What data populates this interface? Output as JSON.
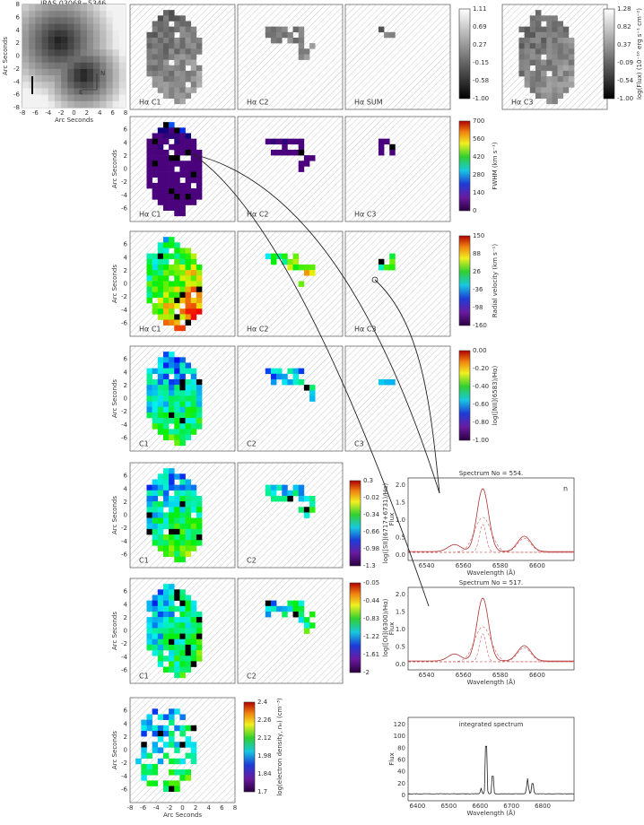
{
  "header": {
    "title": "IRAS 03068−5346"
  },
  "axes": {
    "x_label": "Arc Seconds",
    "y_label": "Arc Seconds",
    "ticks": [
      "-8",
      "-6",
      "-4",
      "-2",
      "0",
      "2",
      "4",
      "6",
      "8"
    ],
    "compass_n": "N",
    "compass_e": "E"
  },
  "rows": [
    {
      "panels": [
        "Hα C1",
        "Hα C2",
        "Hα SUM"
      ],
      "colorbar": {
        "ticks": [
          "1.11",
          "0.69",
          "0.27",
          "-0.15",
          "-0.58",
          "-1.00"
        ]
      },
      "extra_panel": "Hα C3",
      "extra_colorbar": {
        "label": "log(Flux) (10⁻¹⁶ erg s⁻¹ cm⁻²)",
        "ticks": [
          "1.28",
          "0.82",
          "0.37",
          "-0.09",
          "-0.54",
          "-1.00"
        ]
      }
    },
    {
      "panels": [
        "Hα C1",
        "Hα C2",
        "Hα C3"
      ],
      "colorbar": {
        "label": "FWHM (km s⁻¹)",
        "ticks": [
          "700",
          "560",
          "420",
          "280",
          "140",
          "0"
        ]
      }
    },
    {
      "panels": [
        "Hα C1",
        "Hα C2",
        "Hα C3"
      ],
      "colorbar": {
        "label": "Radial velocity (km s⁻¹)",
        "ticks": [
          "150",
          "88",
          "26",
          "-36",
          "-98",
          "-160"
        ]
      }
    },
    {
      "panels": [
        "C1",
        "C2",
        "C3"
      ],
      "colorbar": {
        "label": "log([NII](6583)/Hα)",
        "ticks": [
          "0.00",
          "-0.20",
          "-0.40",
          "-0.60",
          "-0.80",
          "-1.00"
        ]
      }
    },
    {
      "panels": [
        "C1",
        "C2"
      ],
      "colorbar": {
        "label": "log([SII](6717+6731)/Hα)",
        "ticks": [
          "0.3",
          "-0.02",
          "-0.34",
          "-0.66",
          "-0.98",
          "-1.3"
        ]
      }
    },
    {
      "panels": [
        "C1",
        "C2"
      ],
      "colorbar": {
        "label": "log([OI](6300)/Hα)",
        "ticks": [
          "-0.05",
          "-0.44",
          "-0.83",
          "-1.22",
          "-1.61",
          "-2"
        ]
      }
    },
    {
      "panels": [],
      "colorbar": {
        "label": "log(electron density, nₑ) (cm⁻³)",
        "ticks": [
          "2.4",
          "2.26",
          "2.12",
          "1.98",
          "1.84",
          "1.7"
        ]
      }
    }
  ],
  "spectra": [
    {
      "title": "Spectrum No = 554.",
      "letter": "n",
      "y_label": "Flux",
      "x_label": "Wavelength (Å)",
      "yticks": [
        "0.0",
        "0.5",
        "1.0",
        "1.5",
        "2.0"
      ],
      "xticks": [
        "6540",
        "6560",
        "6580",
        "6600"
      ]
    },
    {
      "title": "Spectrum No = 517.",
      "y_label": "Flux",
      "x_label": "Wavelength (Å)",
      "yticks": [
        "0.0",
        "0.5",
        "1.0",
        "1.5",
        "2.0"
      ],
      "xticks": [
        "6540",
        "6560",
        "6580",
        "6600"
      ]
    },
    {
      "title": "integrated spectrum",
      "y_label": "Flux",
      "x_label": "Wavelength (Å)",
      "yticks": [
        "0",
        "20",
        "40",
        "60",
        "80",
        "100",
        "120"
      ],
      "xticks": [
        "6400",
        "6500",
        "6600",
        "6700",
        "6800"
      ]
    }
  ]
}
